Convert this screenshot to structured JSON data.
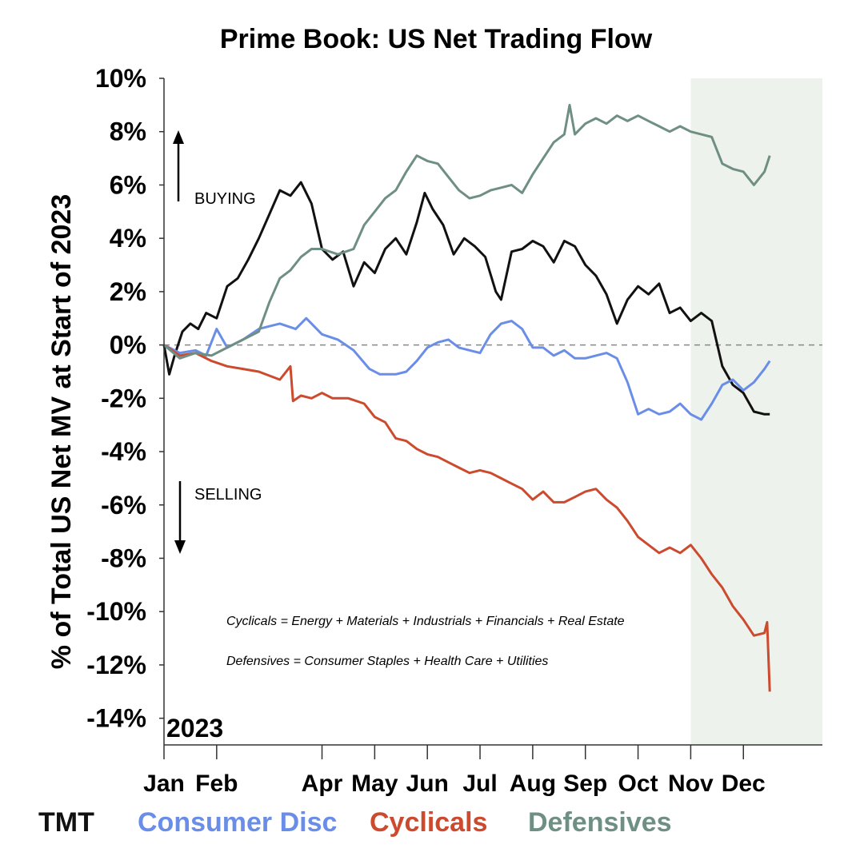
{
  "chart_data": {
    "type": "line",
    "title": "Prime Book: US Net Trading Flow",
    "ylabel": "% of Total US Net MV at Start of 2023",
    "xlabel": "",
    "year_label": "2023",
    "ylim": [
      -15,
      10
    ],
    "xlim": [
      0,
      12.5
    ],
    "y_ticks": [
      10,
      8,
      6,
      4,
      2,
      0,
      -2,
      -4,
      -6,
      -8,
      -10,
      -12,
      -14
    ],
    "y_tick_labels": [
      "10%",
      "8%",
      "6%",
      "4%",
      "2%",
      "0%",
      "-2%",
      "-4%",
      "-6%",
      "-8%",
      "-10%",
      "-12%",
      "-14%"
    ],
    "x_tick_positions": [
      0,
      1,
      3,
      4,
      5,
      6,
      7,
      8,
      9,
      10,
      11
    ],
    "x_tick_labels": [
      "Jan",
      "Feb",
      "Apr",
      "May",
      "Jun",
      "Jul",
      "Aug",
      "Sep",
      "Oct",
      "Nov",
      "Dec"
    ],
    "x_units": "months since start of 2023",
    "shaded_region": [
      10,
      12.5
    ],
    "reference_line": 0,
    "annotations": {
      "buying": "BUYING",
      "selling": "SELLING",
      "cyclicals_def": "Cyclicals = Energy + Materials + Industrials + Financials + Real Estate",
      "defensives_def": "Defensives = Consumer Staples + Health Care + Utilities"
    },
    "series": [
      {
        "name": "TMT",
        "color": "#111111",
        "x": [
          0,
          0.1,
          0.2,
          0.35,
          0.5,
          0.65,
          0.8,
          1.0,
          1.2,
          1.4,
          1.6,
          1.8,
          2.0,
          2.2,
          2.4,
          2.6,
          2.8,
          3.0,
          3.2,
          3.4,
          3.6,
          3.8,
          4.0,
          4.2,
          4.4,
          4.6,
          4.8,
          4.95,
          5.1,
          5.3,
          5.5,
          5.7,
          5.9,
          6.1,
          6.3,
          6.4,
          6.6,
          6.8,
          7.0,
          7.2,
          7.4,
          7.6,
          7.8,
          8.0,
          8.2,
          8.4,
          8.6,
          8.8,
          9.0,
          9.2,
          9.4,
          9.6,
          9.8,
          10.0,
          10.2,
          10.4,
          10.6,
          10.8,
          11.0,
          11.2,
          11.4,
          11.5
        ],
        "values": [
          0,
          -1.1,
          -0.4,
          0.5,
          0.8,
          0.6,
          1.2,
          1.0,
          2.2,
          2.5,
          3.2,
          4.0,
          4.9,
          5.8,
          5.6,
          6.1,
          5.3,
          3.6,
          3.2,
          3.5,
          2.2,
          3.1,
          2.7,
          3.6,
          4.0,
          3.4,
          4.6,
          5.7,
          5.1,
          4.5,
          3.4,
          4.0,
          3.7,
          3.3,
          2.0,
          1.7,
          3.5,
          3.6,
          3.9,
          3.7,
          3.1,
          3.9,
          3.7,
          3.0,
          2.6,
          1.9,
          0.8,
          1.7,
          2.2,
          1.9,
          2.3,
          1.2,
          1.4,
          0.9,
          1.2,
          0.9,
          -0.8,
          -1.5,
          -1.8,
          -2.5,
          -2.6,
          -2.6
        ]
      },
      {
        "name": "Consumer Disc",
        "color": "#6a8ee8",
        "x": [
          0,
          0.3,
          0.6,
          0.8,
          1.0,
          1.2,
          1.5,
          1.8,
          2.0,
          2.2,
          2.5,
          2.7,
          3.0,
          3.3,
          3.6,
          3.9,
          4.1,
          4.4,
          4.6,
          4.8,
          5.0,
          5.2,
          5.4,
          5.6,
          5.8,
          6.0,
          6.2,
          6.4,
          6.6,
          6.8,
          7.0,
          7.2,
          7.4,
          7.6,
          7.8,
          8.0,
          8.2,
          8.4,
          8.6,
          8.8,
          9.0,
          9.2,
          9.4,
          9.6,
          9.8,
          10.0,
          10.2,
          10.4,
          10.6,
          10.8,
          11.0,
          11.2,
          11.4,
          11.5
        ],
        "values": [
          0,
          -0.3,
          -0.2,
          -0.4,
          0.6,
          -0.1,
          0.2,
          0.6,
          0.7,
          0.8,
          0.6,
          1.0,
          0.4,
          0.2,
          -0.2,
          -0.9,
          -1.1,
          -1.1,
          -1.0,
          -0.6,
          -0.1,
          0.1,
          0.2,
          -0.1,
          -0.2,
          -0.3,
          0.4,
          0.8,
          0.9,
          0.6,
          -0.1,
          -0.1,
          -0.4,
          -0.2,
          -0.5,
          -0.5,
          -0.4,
          -0.3,
          -0.5,
          -1.4,
          -2.6,
          -2.4,
          -2.6,
          -2.5,
          -2.2,
          -2.6,
          -2.8,
          -2.2,
          -1.5,
          -1.3,
          -1.7,
          -1.4,
          -0.9,
          -0.6
        ]
      },
      {
        "name": "Cyclicals",
        "color": "#cc4a2e",
        "x": [
          0,
          0.3,
          0.6,
          0.9,
          1.2,
          1.5,
          1.8,
          2.2,
          2.4,
          2.45,
          2.6,
          2.8,
          3.0,
          3.2,
          3.5,
          3.8,
          4.0,
          4.2,
          4.4,
          4.6,
          4.8,
          5.0,
          5.2,
          5.4,
          5.6,
          5.8,
          6.0,
          6.2,
          6.4,
          6.6,
          6.8,
          7.0,
          7.2,
          7.4,
          7.6,
          7.8,
          8.0,
          8.2,
          8.4,
          8.6,
          8.8,
          9.0,
          9.2,
          9.4,
          9.6,
          9.8,
          10.0,
          10.2,
          10.4,
          10.6,
          10.8,
          11.0,
          11.2,
          11.4,
          11.45,
          11.5
        ],
        "values": [
          0,
          -0.4,
          -0.3,
          -0.6,
          -0.8,
          -0.9,
          -1.0,
          -1.3,
          -0.8,
          -2.1,
          -1.9,
          -2.0,
          -1.8,
          -2.0,
          -2.0,
          -2.2,
          -2.7,
          -2.9,
          -3.5,
          -3.6,
          -3.9,
          -4.1,
          -4.2,
          -4.4,
          -4.6,
          -4.8,
          -4.7,
          -4.8,
          -5.0,
          -5.2,
          -5.4,
          -5.8,
          -5.5,
          -5.9,
          -5.9,
          -5.7,
          -5.5,
          -5.4,
          -5.8,
          -6.1,
          -6.6,
          -7.2,
          -7.5,
          -7.8,
          -7.6,
          -7.8,
          -7.5,
          -8.0,
          -8.6,
          -9.1,
          -9.8,
          -10.3,
          -10.9,
          -10.8,
          -10.4,
          -13.0
        ]
      },
      {
        "name": "Defensives",
        "color": "#6f8f84",
        "x": [
          0,
          0.3,
          0.6,
          0.9,
          1.2,
          1.5,
          1.8,
          2.0,
          2.2,
          2.4,
          2.6,
          2.8,
          3.0,
          3.3,
          3.6,
          3.8,
          4.0,
          4.2,
          4.4,
          4.6,
          4.8,
          5.0,
          5.2,
          5.4,
          5.6,
          5.8,
          6.0,
          6.2,
          6.4,
          6.6,
          6.8,
          7.0,
          7.2,
          7.4,
          7.6,
          7.7,
          7.8,
          8.0,
          8.2,
          8.4,
          8.6,
          8.8,
          9.0,
          9.2,
          9.4,
          9.6,
          9.8,
          10.0,
          10.2,
          10.4,
          10.6,
          10.8,
          11.0,
          11.2,
          11.4,
          11.5
        ],
        "values": [
          0,
          -0.5,
          -0.3,
          -0.4,
          -0.1,
          0.2,
          0.5,
          1.6,
          2.5,
          2.8,
          3.3,
          3.6,
          3.6,
          3.4,
          3.6,
          4.5,
          5.0,
          5.5,
          5.8,
          6.5,
          7.1,
          6.9,
          6.8,
          6.3,
          5.8,
          5.5,
          5.6,
          5.8,
          5.9,
          6.0,
          5.7,
          6.4,
          7.0,
          7.6,
          7.9,
          9.0,
          7.9,
          8.3,
          8.5,
          8.3,
          8.6,
          8.4,
          8.6,
          8.4,
          8.2,
          8.0,
          8.2,
          8.0,
          7.9,
          7.8,
          6.8,
          6.6,
          6.5,
          6.0,
          6.5,
          7.1
        ]
      }
    ]
  }
}
